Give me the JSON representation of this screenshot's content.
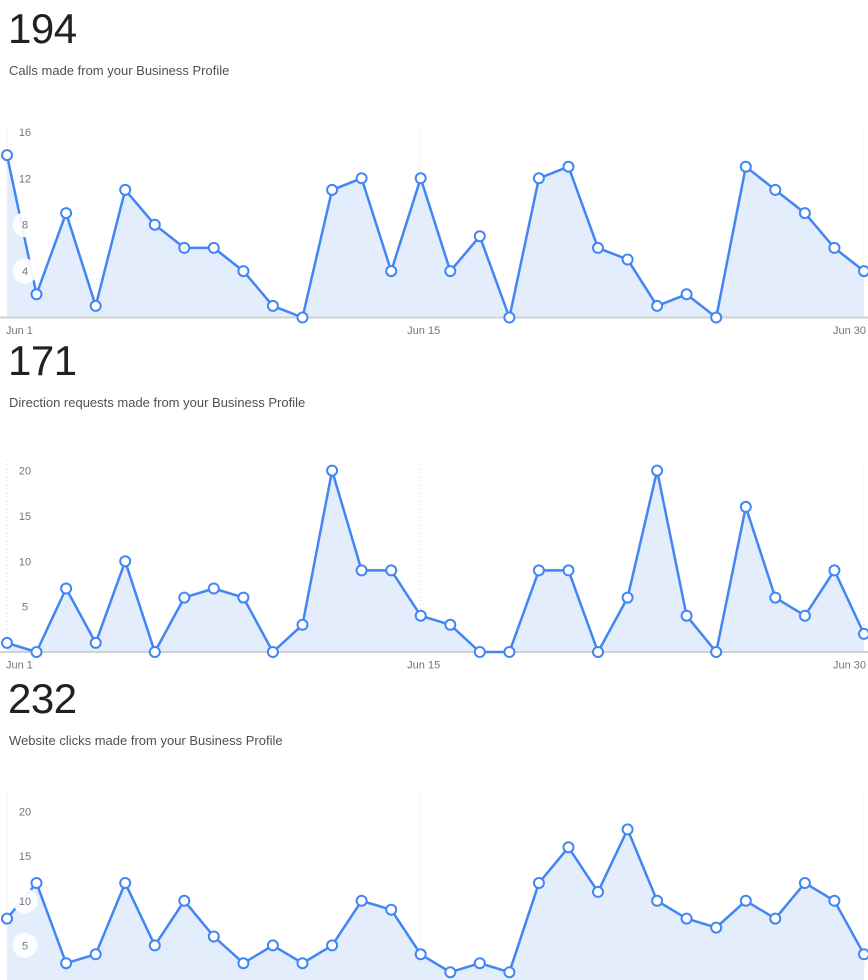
{
  "page": {
    "background": "#ffffff"
  },
  "sections": [
    {
      "id": "calls"
    },
    {
      "id": "direction-requests"
    },
    {
      "id": "website-clicks"
    }
  ],
  "chart_data": [
    {
      "type": "area",
      "title": "194",
      "subtitle": "Calls made from your Business Profile",
      "x_tick_labels": [
        "Jun 1",
        "Jun 15",
        "Jun 30"
      ],
      "x_range": [
        "Jun 1",
        "Jun 30"
      ],
      "y_ticks": [
        4,
        8,
        12,
        16
      ],
      "ylim": [
        0,
        16
      ],
      "values": [
        14,
        2,
        9,
        1,
        11,
        8,
        6,
        6,
        4,
        1,
        0,
        11,
        12,
        4,
        12,
        4,
        7,
        0,
        12,
        13,
        6,
        5,
        1,
        2,
        0,
        13,
        11,
        9,
        6,
        4
      ],
      "total": 194,
      "grid": "dotted vertical lines at Jun 1, Jun 15, Jun 30",
      "legend": "none"
    },
    {
      "type": "area",
      "title": "171",
      "subtitle": "Direction requests made from your Business Profile",
      "x_tick_labels": [
        "Jun 1",
        "Jun 15",
        "Jun 30"
      ],
      "x_range": [
        "Jun 1",
        "Jun 30"
      ],
      "y_ticks": [
        5,
        10,
        15,
        20
      ],
      "ylim": [
        0,
        20
      ],
      "values": [
        1,
        0,
        7,
        1,
        10,
        0,
        6,
        7,
        6,
        0,
        3,
        20,
        9,
        9,
        4,
        3,
        0,
        0,
        9,
        9,
        0,
        6,
        20,
        4,
        0,
        16,
        6,
        4,
        9,
        2
      ],
      "total": 171,
      "grid": "dotted vertical lines at Jun 1, Jun 15, Jun 30",
      "legend": "none"
    },
    {
      "type": "area",
      "title": "232",
      "subtitle": "Website clicks made from your Business Profile",
      "x_tick_labels": [],
      "x_range": [
        "Jun 1",
        "Jun 30"
      ],
      "y_ticks": [
        5,
        10,
        15,
        20
      ],
      "ylim": [
        0,
        20
      ],
      "values": [
        8,
        12,
        3,
        4,
        12,
        5,
        10,
        6,
        3,
        5,
        3,
        5,
        10,
        9,
        4,
        2,
        3,
        2,
        12,
        16,
        11,
        18,
        10,
        8,
        7,
        10,
        8,
        12,
        10,
        4
      ],
      "total": 232,
      "grid": "dotted vertical lines at Jun 1, Jun 15, Jun 30",
      "legend": "none",
      "note_bottom_cut": true
    }
  ],
  "colors": {
    "line": "#4285f4",
    "area_fill": "#e4edfb",
    "point_fill": "#ffffff",
    "axis_line": "#cfd1d3",
    "tick_text": "#757575",
    "grid_dots": "#d9d9d9",
    "heading_text": "#202124",
    "subtitle_text": "#4d5156"
  }
}
